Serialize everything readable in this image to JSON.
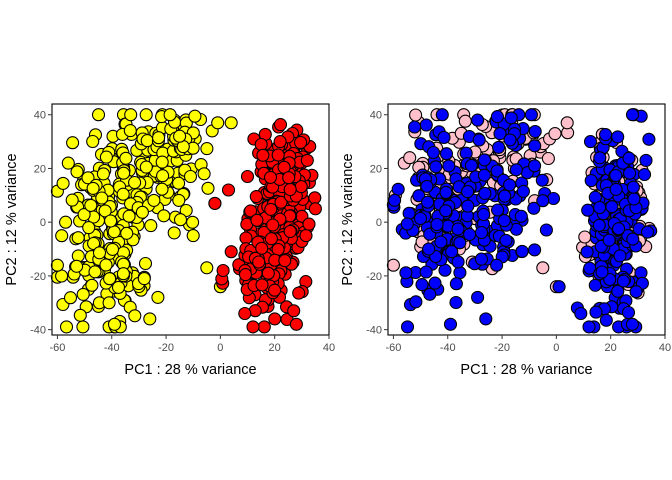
{
  "chart_data": [
    {
      "type": "scatter",
      "xlabel": "PC1 : 28 % variance",
      "ylabel": "PC2 : 12 % variance",
      "xlim": [
        -62,
        40
      ],
      "ylim": [
        -42,
        44
      ],
      "xticks": [
        -60,
        -40,
        -20,
        0,
        20,
        40
      ],
      "yticks": [
        -40,
        -20,
        0,
        20,
        40
      ],
      "grid": false,
      "legend": "none",
      "colors": [
        "#ffff00",
        "#ff0000"
      ],
      "series": [
        {
          "color": "#ffff00",
          "clusters": [
            {
              "center": [
                -40,
                8
              ],
              "spread": [
                9,
                14
              ],
              "count": 140
            },
            {
              "center": [
                -43,
                -20
              ],
              "spread": [
                7,
                8
              ],
              "count": 80
            },
            {
              "center": [
                -22,
                18
              ],
              "spread": [
                8,
                12
              ],
              "count": 90
            },
            {
              "center": [
                -14,
                33
              ],
              "spread": [
                6,
                4
              ],
              "count": 30
            }
          ],
          "points": [
            [
              -56,
              22
            ],
            [
              -60,
              -16
            ],
            [
              -57,
              0
            ],
            [
              -39,
              -38
            ],
            [
              -26,
              -36
            ],
            [
              -15,
              32
            ],
            [
              -3,
              34
            ],
            [
              -1,
              37
            ],
            [
              4,
              37
            ],
            [
              -5,
              -17
            ],
            [
              0,
              -24
            ],
            [
              -2,
              7
            ],
            [
              -10,
              -5
            ],
            [
              -11,
              17
            ],
            [
              -28,
              -21
            ],
            [
              -17,
              -4
            ],
            [
              -23,
              -28
            ],
            [
              -6,
              18
            ]
          ]
        },
        {
          "color": "#ff0000",
          "clusters": [
            {
              "center": [
                22,
                5
              ],
              "spread": [
                5,
                14
              ],
              "count": 230
            },
            {
              "center": [
                16,
                -18
              ],
              "spread": [
                6,
                9
              ],
              "count": 60
            },
            {
              "center": [
                24,
                22
              ],
              "spread": [
                4,
                6
              ],
              "count": 50
            }
          ],
          "points": [
            [
              9,
              -34
            ],
            [
              12,
              -39
            ],
            [
              28,
              -38
            ],
            [
              20,
              -36
            ],
            [
              1,
              -18
            ],
            [
              3,
              12
            ],
            [
              4,
              -11
            ],
            [
              35,
              5
            ],
            [
              32,
              23
            ],
            [
              -2,
              7
            ],
            [
              10,
              17
            ],
            [
              22,
              30
            ],
            [
              27,
              -33
            ]
          ]
        }
      ]
    },
    {
      "type": "scatter",
      "xlabel": "PC1 : 28 % variance",
      "ylabel": "PC2 : 12 % variance",
      "xlim": [
        -62,
        40
      ],
      "ylim": [
        -42,
        44
      ],
      "xticks": [
        -60,
        -40,
        -20,
        0,
        20,
        40
      ],
      "yticks": [
        -40,
        -20,
        0,
        20,
        40
      ],
      "grid": false,
      "legend": "none",
      "colors": [
        "#ffc0cb",
        "#0000ff"
      ],
      "series": [
        {
          "color": "#ffc0cb",
          "clusters": [
            {
              "center": [
                -40,
                10
              ],
              "spread": [
                9,
                14
              ],
              "count": 90
            },
            {
              "center": [
                -15,
                28
              ],
              "spread": [
                8,
                8
              ],
              "count": 50
            },
            {
              "center": [
                22,
                5
              ],
              "spread": [
                5,
                15
              ],
              "count": 100
            }
          ],
          "points": [
            [
              -56,
              22
            ],
            [
              -54,
              24
            ],
            [
              -60,
              -16
            ],
            [
              -5,
              -17
            ],
            [
              4,
              37
            ],
            [
              0,
              -24
            ],
            [
              -8,
              8
            ]
          ]
        },
        {
          "color": "#0000ff",
          "clusters": [
            {
              "center": [
                -42,
                0
              ],
              "spread": [
                8,
                16
              ],
              "count": 140
            },
            {
              "center": [
                -20,
                10
              ],
              "spread": [
                8,
                16
              ],
              "count": 90
            },
            {
              "center": [
                22,
                0
              ],
              "spread": [
                5,
                16
              ],
              "count": 190
            }
          ],
          "points": [
            [
              -39,
              -38
            ],
            [
              -26,
              -36
            ],
            [
              -29,
              38
            ],
            [
              9,
              -34
            ],
            [
              12,
              -39
            ],
            [
              28,
              -38
            ],
            [
              1,
              -24
            ],
            [
              -8,
              21
            ],
            [
              -22,
              -16
            ],
            [
              -5,
              8
            ],
            [
              33,
              23
            ],
            [
              -47,
              -10
            ]
          ]
        }
      ]
    }
  ]
}
